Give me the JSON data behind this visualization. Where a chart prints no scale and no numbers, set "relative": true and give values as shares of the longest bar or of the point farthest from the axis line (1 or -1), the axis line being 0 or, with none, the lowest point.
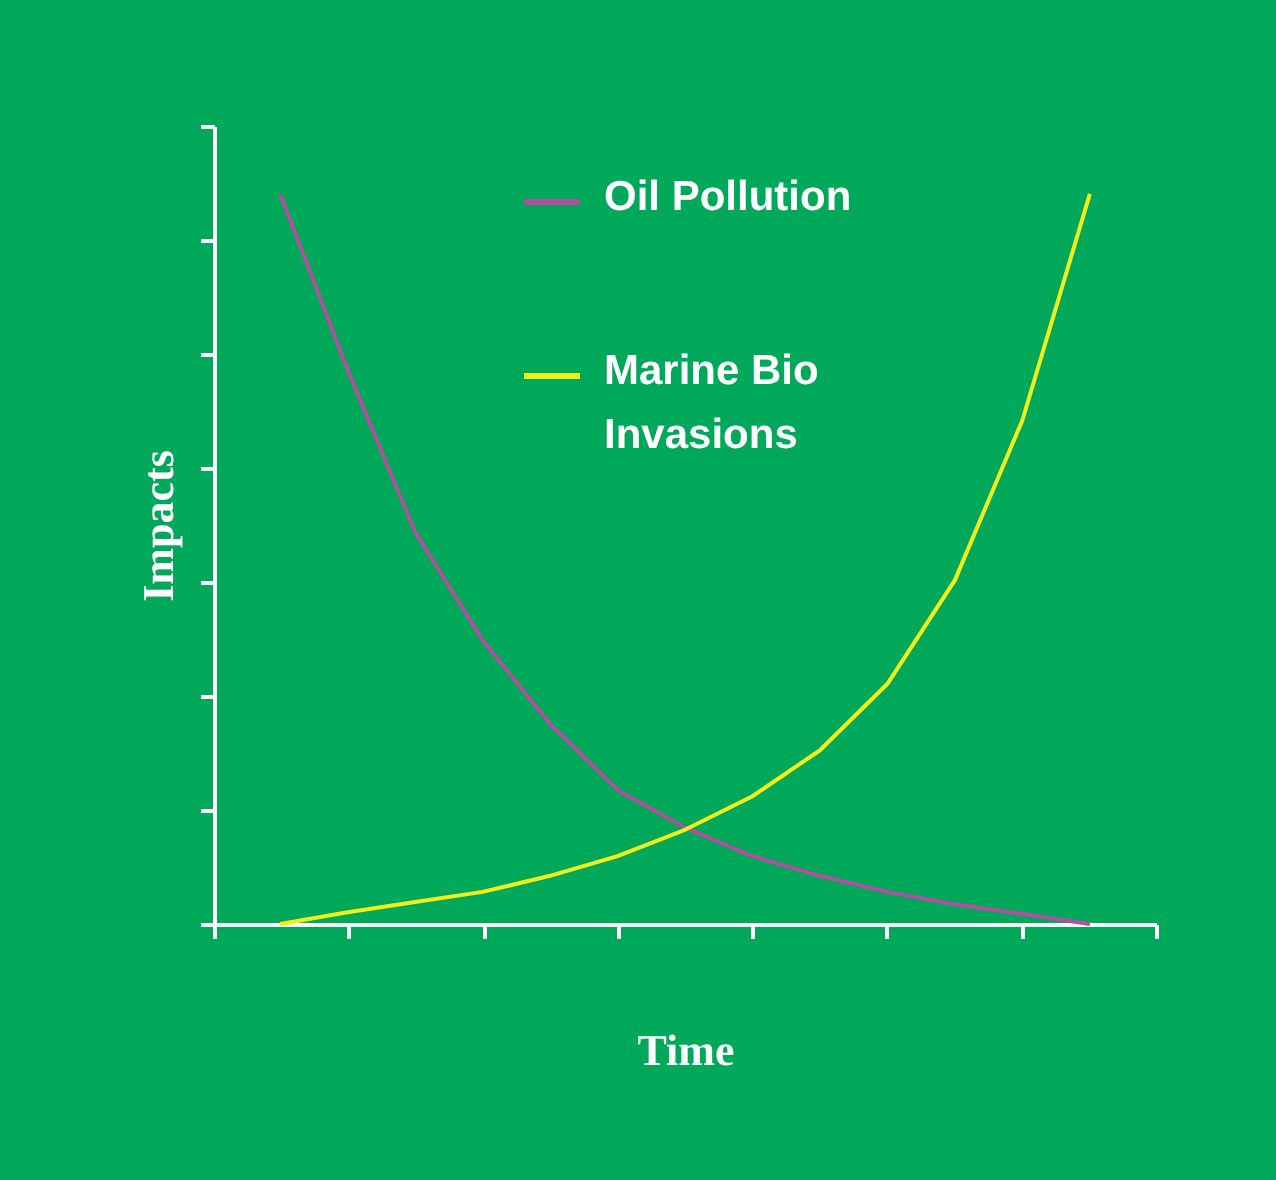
{
  "chart_data": {
    "type": "line",
    "xlabel": "Time",
    "ylabel": "Impacts",
    "relative": true,
    "tick_labels": false,
    "grid": false,
    "legend": "top right",
    "marker": "none",
    "line_style": "solid",
    "categories": [
      null,
      null,
      null,
      null,
      null,
      null,
      null,
      null,
      null,
      null,
      null,
      null,
      null
    ],
    "series": [
      {
        "name": "Oil Pollution",
        "color": "#b0509e",
        "values": [
          1,
          0.759,
          0.537,
          0.389,
          0.274,
          0.184,
          0.132,
          0.093,
          0.066,
          0.044,
          0.027,
          0.014,
          0
        ]
      },
      {
        "name": "Marine Bio Invasions",
        "color": "#f2ee1c",
        "values": [
          0,
          0.016,
          0.03,
          0.044,
          0.066,
          0.093,
          0.129,
          0.175,
          0.238,
          0.329,
          0.471,
          0.69,
          1
        ]
      }
    ]
  }
}
